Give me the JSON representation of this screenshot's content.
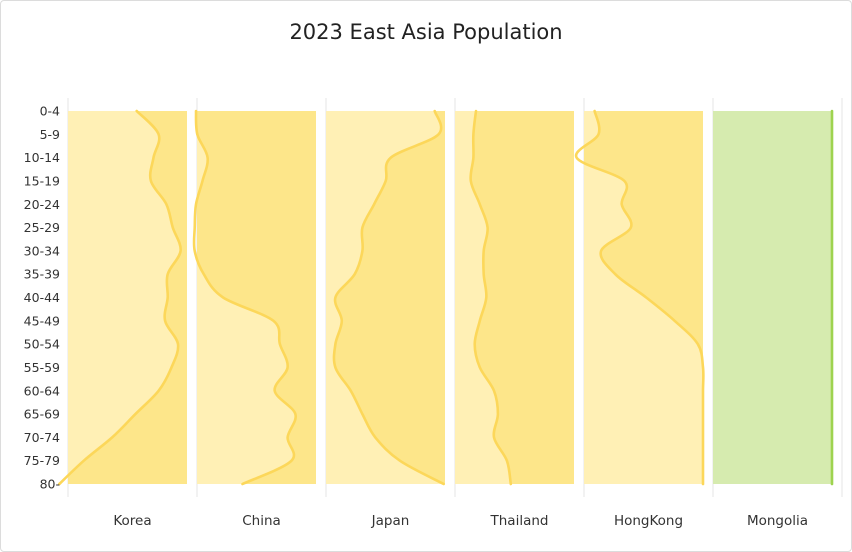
{
  "chart_data": {
    "type": "area",
    "title": "2023 East Asia Population",
    "age_groups": [
      "0-4",
      "5-9",
      "10-14",
      "15-19",
      "20-24",
      "25-29",
      "30-34",
      "35-39",
      "40-44",
      "45-49",
      "50-54",
      "55-59",
      "60-64",
      "65-69",
      "70-74",
      "75-79",
      "80-"
    ],
    "xlabel": "",
    "ylabel": "",
    "grid": true,
    "legend": "none",
    "colors": {
      "band": "#fff0b5",
      "band_green": "#d6ebaf",
      "overlap_yellow": "#fde68a",
      "overlap_green": "#d8e48c",
      "line_yellow": "#fcd75a",
      "line_green": "#9ed34f",
      "grid": "#e4e4e4",
      "text": "#333333"
    },
    "series": [
      {
        "name": "Korea",
        "values": [
          39,
          22,
          26,
          28,
          16,
          11,
          5,
          15,
          15,
          17,
          7,
          12,
          22,
          40,
          58,
          80,
          99
        ]
      },
      {
        "name": "China",
        "values": [
          93,
          92,
          84,
          88,
          93,
          94,
          94,
          87,
          72,
          33,
          28,
          22,
          32,
          16,
          22,
          19,
          57
        ]
      },
      {
        "name": "Japan",
        "values": [
          8,
          5,
          42,
          46,
          55,
          64,
          64,
          70,
          85,
          80,
          85,
          85,
          73,
          64,
          54,
          35,
          1
        ]
      },
      {
        "name": "Thailand",
        "values": [
          76,
          78,
          78,
          80,
          73,
          67,
          70,
          70,
          68,
          73,
          77,
          73,
          62,
          59,
          62,
          52,
          49
        ]
      },
      {
        "name": "HongKong",
        "values": [
          84,
          81,
          98,
          61,
          63,
          56,
          79,
          68,
          44,
          22,
          4,
          0,
          0,
          0,
          0,
          0,
          0
        ]
      },
      {
        "name": "Mongolia",
        "values": [
          0,
          0,
          0,
          0,
          0,
          0,
          0,
          0,
          0,
          0,
          0,
          0,
          0,
          0,
          0,
          0,
          0
        ]
      }
    ],
    "ylim": [
      0,
      100
    ]
  }
}
